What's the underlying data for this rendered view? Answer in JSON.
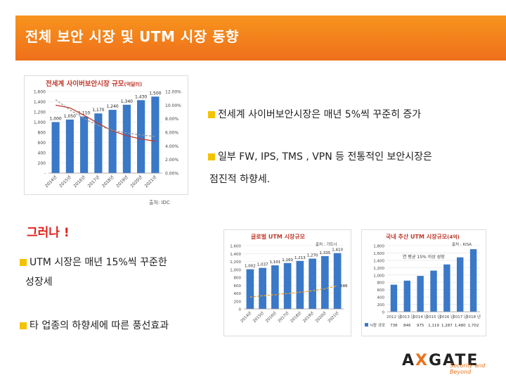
{
  "slide": {
    "title": "전체 보안 시장 및 UTM 시장 동향"
  },
  "bullets": {
    "b1": "전세계 사이버보안시장은 매년 5%씩 꾸준히 증가",
    "b2_line1": "일부 FW, IPS, TMS , VPN 등 전통적인 보안시장은",
    "b2_line2": "점진적 하향세.",
    "however": "그러나 !",
    "b3_line1": "UTM 시장은 매년 15%씩 꾸준한",
    "b3_line2": "성장세",
    "b4": "타 업종의 하향세에 따른 풍선효과"
  },
  "logo": {
    "a": "A",
    "x": "X",
    "rest": "GATE",
    "tagline": "Security and Beyond"
  },
  "chart_data": [
    {
      "type": "bar",
      "title": "전세계 사이버보안시장 규모",
      "title_suffix": "(억달러)",
      "source": "출처: IDC",
      "categories": [
        "2014년",
        "2015년",
        "2016년",
        "2017년",
        "2018년",
        "2019년",
        "2020년",
        "2021년"
      ],
      "values": [
        1000,
        1050,
        1110,
        1170,
        1240,
        1340,
        1430,
        1500
      ],
      "value_labels": [
        "1,000",
        "1,050",
        "1,110",
        "1,170",
        "1,240",
        "1,340",
        "1,430",
        "1,500"
      ],
      "ylim": [
        0,
        1600
      ],
      "yticks": [
        "-",
        "200",
        "400",
        "600",
        "800",
        "1,000",
        "1,200",
        "1,400",
        "1,600"
      ],
      "y2ticks": [
        "0.00%",
        "2.00%",
        "4.00%",
        "6.00%",
        "8.00%",
        "10.00%",
        "12.00%"
      ],
      "y2lim": [
        0,
        12
      ],
      "line_series": [
        {
          "name": "성장률(빨강)",
          "values": [
            10.0,
            9.6,
            8.5,
            7.3,
            6.2,
            5.5,
            5.0,
            4.7
          ]
        },
        {
          "name": "성장률(회색)",
          "values": [
            10.8,
            9.3,
            8.0,
            7.0,
            6.3,
            5.9,
            5.6,
            5.4
          ]
        }
      ]
    },
    {
      "type": "bar",
      "title": "글로벌 UTM 시장규모",
      "source": "출처 : 가트너",
      "categories": [
        "2014년",
        "2015년",
        "2016년",
        "2017년",
        "2018년",
        "2019년",
        "2020년",
        "2021년"
      ],
      "values": [
        1002,
        1037,
        1101,
        1160,
        1213,
        1270,
        1335,
        1410
      ],
      "value_labels": [
        "1,002",
        "1,037",
        "1,101",
        "1,160",
        "1,213",
        "1,270",
        "1,335",
        "1,410"
      ],
      "ylim": [
        0,
        1600
      ],
      "yticks": [
        "0",
        "200",
        "400",
        "600",
        "800",
        "1,000",
        "1,200",
        "1,400",
        "1,600"
      ],
      "line_series": [
        {
          "name": "성장률",
          "values": [
            300,
            332,
            360,
            390,
            420,
            460,
            510,
            586
          ]
        }
      ],
      "line_label": "586"
    },
    {
      "type": "bar",
      "title": "국내 추산 UTM 시장규모",
      "title_suffix": "(4억)",
      "source": "출처 : KISA",
      "annotation": "연 평균 15% 이상 성장",
      "categories": [
        "2012 년",
        "2013 년",
        "2014 년",
        "2015 년",
        "2016 년",
        "2017 년",
        "2018 년"
      ],
      "values": [
        736,
        846,
        975,
        1119,
        1287,
        1480,
        1702
      ],
      "table_label": "시장 규모",
      "table_values": [
        "736",
        "846",
        "975",
        "1,119",
        "1,287",
        "1,480",
        "1,702"
      ],
      "ylim": [
        0,
        1800
      ],
      "yticks": [
        "0",
        "200",
        "400",
        "600",
        "800",
        "1,000",
        "1,200",
        "1,400",
        "1,600",
        "1,800"
      ]
    }
  ]
}
